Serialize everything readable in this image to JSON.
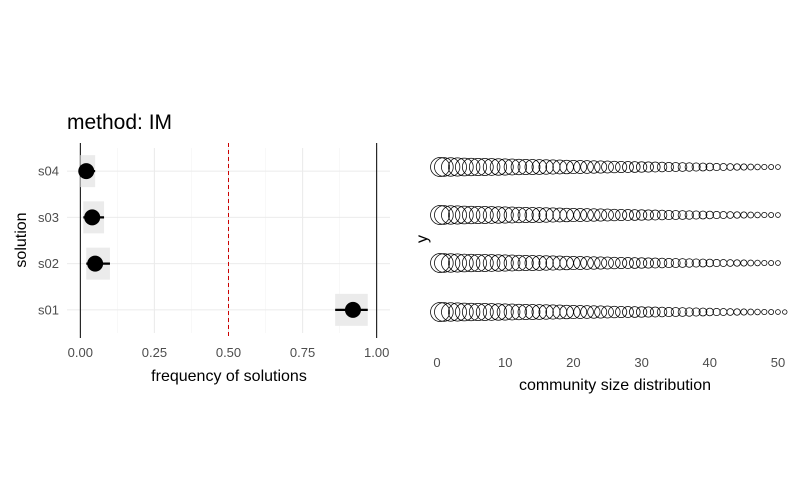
{
  "chart_data": [
    {
      "type": "scatter",
      "title": "method: IM",
      "xlabel": "frequency of solutions",
      "ylabel": "solution",
      "xlim": [
        -0.045,
        1.045
      ],
      "xticks": [
        "0.00",
        "0.25",
        "0.50",
        "0.75",
        "1.00"
      ],
      "xtick_values": [
        0,
        0.25,
        0.5,
        0.75,
        1.0
      ],
      "categories": [
        "s04",
        "s03",
        "s02",
        "s01"
      ],
      "points": [
        {
          "category": "s04",
          "value": 0.02,
          "lo": 0.0,
          "hi": 0.05
        },
        {
          "category": "s03",
          "value": 0.04,
          "lo": 0.01,
          "hi": 0.08
        },
        {
          "category": "s02",
          "value": 0.05,
          "lo": 0.02,
          "hi": 0.1
        },
        {
          "category": "s01",
          "value": 0.92,
          "lo": 0.86,
          "hi": 0.97
        }
      ],
      "reference_lines": [
        {
          "value": 0.5,
          "style": "dashed",
          "color": "#cc0000"
        },
        {
          "value": 0.0,
          "style": "solid",
          "color": "#000000"
        },
        {
          "value": 1.0,
          "style": "solid",
          "color": "#000000"
        }
      ],
      "grid": true,
      "colors": {
        "point": "#000000",
        "interval": "#ebebeb",
        "grid": "#ebebeb"
      }
    },
    {
      "type": "scatter",
      "xlabel": "community size distribution",
      "ylabel": "y",
      "xlim": [
        -2.5,
        52.5
      ],
      "xticks": [
        "0",
        "10",
        "20",
        "30",
        "40",
        "50"
      ],
      "xtick_values": [
        0,
        10,
        20,
        30,
        40,
        50
      ],
      "rows": [
        {
          "index": 4,
          "x_max": 50
        },
        {
          "index": 3,
          "x_max": 50
        },
        {
          "index": 2,
          "x_max": 50
        },
        {
          "index": 1,
          "x_max": 51
        }
      ],
      "marker": "open-circle",
      "marker_size_trend": "decreasing with x",
      "grid": false
    }
  ]
}
